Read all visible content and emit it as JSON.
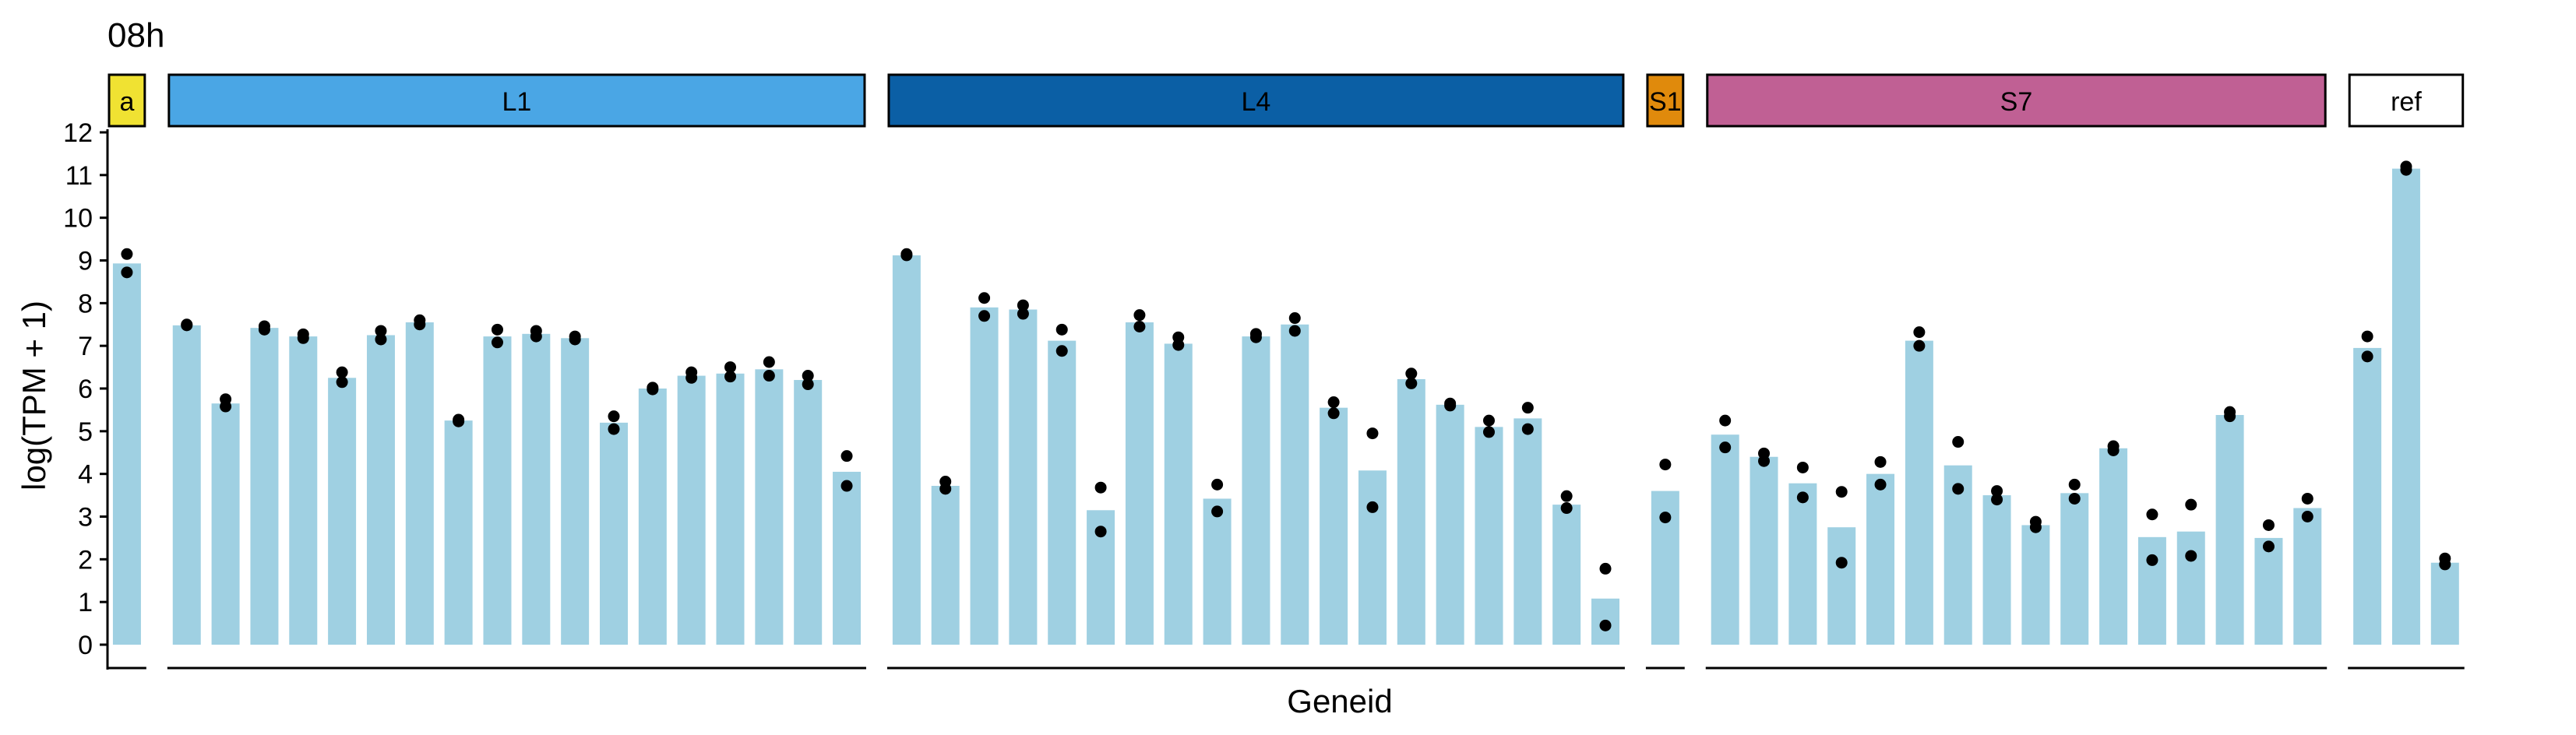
{
  "chart_data": {
    "type": "bar",
    "title": "08h",
    "xlabel": "Geneid",
    "ylabel": "log(TPM + 1)",
    "ylim": [
      0,
      12
    ],
    "yticks": [
      0,
      1,
      2,
      3,
      4,
      5,
      6,
      7,
      8,
      9,
      10,
      11,
      12
    ],
    "grid": false,
    "legend": "none",
    "bar_color": "#9fd0e2",
    "point_color": "#000000",
    "panels": [
      {
        "label": "a",
        "strip_color": "#f0e232",
        "values": [
          8.93
        ],
        "points": [
          [
            9.15,
            8.72
          ]
        ]
      },
      {
        "label": "L1",
        "strip_color": "#4aa6e5",
        "values": [
          7.48,
          5.65,
          7.42,
          7.22,
          6.25,
          7.25,
          7.55,
          5.25,
          7.22,
          7.28,
          7.18,
          5.2,
          6.0,
          6.3,
          6.35,
          6.45,
          6.2,
          4.05
        ],
        "points": [
          [
            7.5,
            7.48
          ],
          [
            5.75,
            5.58
          ],
          [
            7.46,
            7.38
          ],
          [
            7.27,
            7.18
          ],
          [
            6.38,
            6.15
          ],
          [
            7.35,
            7.15
          ],
          [
            7.6,
            7.5
          ],
          [
            5.27,
            5.23
          ],
          [
            7.38,
            7.08
          ],
          [
            7.35,
            7.22
          ],
          [
            7.22,
            7.15
          ],
          [
            5.35,
            5.05
          ],
          [
            6.02,
            5.98
          ],
          [
            6.38,
            6.25
          ],
          [
            6.5,
            6.28
          ],
          [
            6.62,
            6.3
          ],
          [
            6.3,
            6.1
          ],
          [
            4.42,
            3.72
          ]
        ]
      },
      {
        "label": "L4",
        "strip_color": "#0b5fa5",
        "values": [
          9.12,
          3.72,
          7.9,
          7.85,
          7.12,
          3.15,
          7.55,
          7.05,
          3.42,
          7.22,
          7.5,
          5.55,
          4.08,
          6.22,
          5.62,
          5.1,
          5.3,
          3.28,
          1.08
        ],
        "points": [
          [
            9.15,
            9.12
          ],
          [
            3.82,
            3.65
          ],
          [
            8.12,
            7.7
          ],
          [
            7.95,
            7.75
          ],
          [
            7.38,
            6.88
          ],
          [
            3.68,
            2.65
          ],
          [
            7.72,
            7.45
          ],
          [
            7.2,
            7.02
          ],
          [
            3.75,
            3.12
          ],
          [
            7.28,
            7.2
          ],
          [
            7.65,
            7.35
          ],
          [
            5.68,
            5.42
          ],
          [
            4.95,
            3.22
          ],
          [
            6.35,
            6.12
          ],
          [
            5.65,
            5.6
          ],
          [
            5.25,
            4.98
          ],
          [
            5.55,
            5.05
          ],
          [
            3.48,
            3.2
          ],
          [
            1.78,
            0.45
          ]
        ]
      },
      {
        "label": "S1",
        "strip_color": "#e08a0c",
        "values": [
          3.6
        ],
        "points": [
          [
            4.22,
            2.98
          ]
        ]
      },
      {
        "label": "S7",
        "strip_color": "#c06094",
        "values": [
          4.92,
          4.4,
          3.78,
          2.75,
          4.0,
          7.12,
          4.2,
          3.5,
          2.8,
          3.55,
          4.6,
          2.52,
          2.65,
          5.38,
          2.5,
          3.2
        ],
        "points": [
          [
            5.25,
            4.62
          ],
          [
            4.48,
            4.3
          ],
          [
            4.15,
            3.45
          ],
          [
            3.58,
            1.92
          ],
          [
            4.28,
            3.75
          ],
          [
            7.32,
            7.0
          ],
          [
            4.75,
            3.65
          ],
          [
            3.6,
            3.4
          ],
          [
            2.88,
            2.75
          ],
          [
            3.75,
            3.42
          ],
          [
            4.65,
            4.55
          ],
          [
            3.05,
            1.98
          ],
          [
            3.28,
            2.08
          ],
          [
            5.45,
            5.35
          ],
          [
            2.8,
            2.3
          ],
          [
            3.42,
            3.0
          ]
        ]
      },
      {
        "label": "ref",
        "strip_color": "#ffffff",
        "values": [
          6.95,
          11.15,
          1.92
        ],
        "points": [
          [
            7.22,
            6.75
          ],
          [
            11.2,
            11.12
          ],
          [
            2.02,
            1.88
          ]
        ]
      }
    ]
  }
}
